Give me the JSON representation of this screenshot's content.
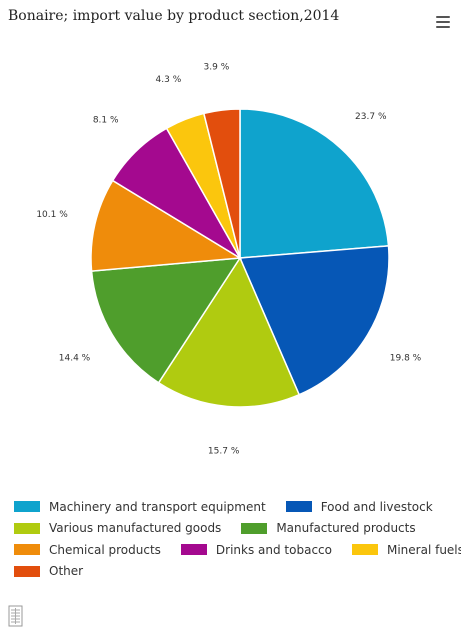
{
  "header": {
    "title": "Bonaire; import value by product section,2014",
    "menu_icon": "hamburger-menu-icon"
  },
  "footer": {
    "icon": "table-document-icon"
  },
  "chart_data": {
    "type": "pie",
    "title": "Bonaire; import value by product section,2014",
    "slices": [
      {
        "label": "Machinery and transport equipment",
        "value": 23.7,
        "display": "23.7 %",
        "color": "#0fa3cd"
      },
      {
        "label": "Food and livestock",
        "value": 19.8,
        "display": "19.8 %",
        "color": "#0657b6"
      },
      {
        "label": "Various manufactured goods",
        "value": 15.7,
        "display": "15.7 %",
        "color": "#b0cb10"
      },
      {
        "label": "Manufactured products",
        "value": 14.4,
        "display": "14.4 %",
        "color": "#4f9e2c"
      },
      {
        "label": "Chemical products",
        "value": 10.1,
        "display": "10.1 %",
        "color": "#ef8c0b"
      },
      {
        "label": "Drinks and tobacco",
        "value": 8.1,
        "display": "8.1 %",
        "color": "#a4098f"
      },
      {
        "label": "Mineral fuels",
        "value": 4.3,
        "display": "4.3 %",
        "color": "#fbc60d"
      },
      {
        "label": "Other",
        "value": 3.9,
        "display": "3.9 %",
        "color": "#e24e0d"
      }
    ],
    "legend_position": "bottom"
  }
}
